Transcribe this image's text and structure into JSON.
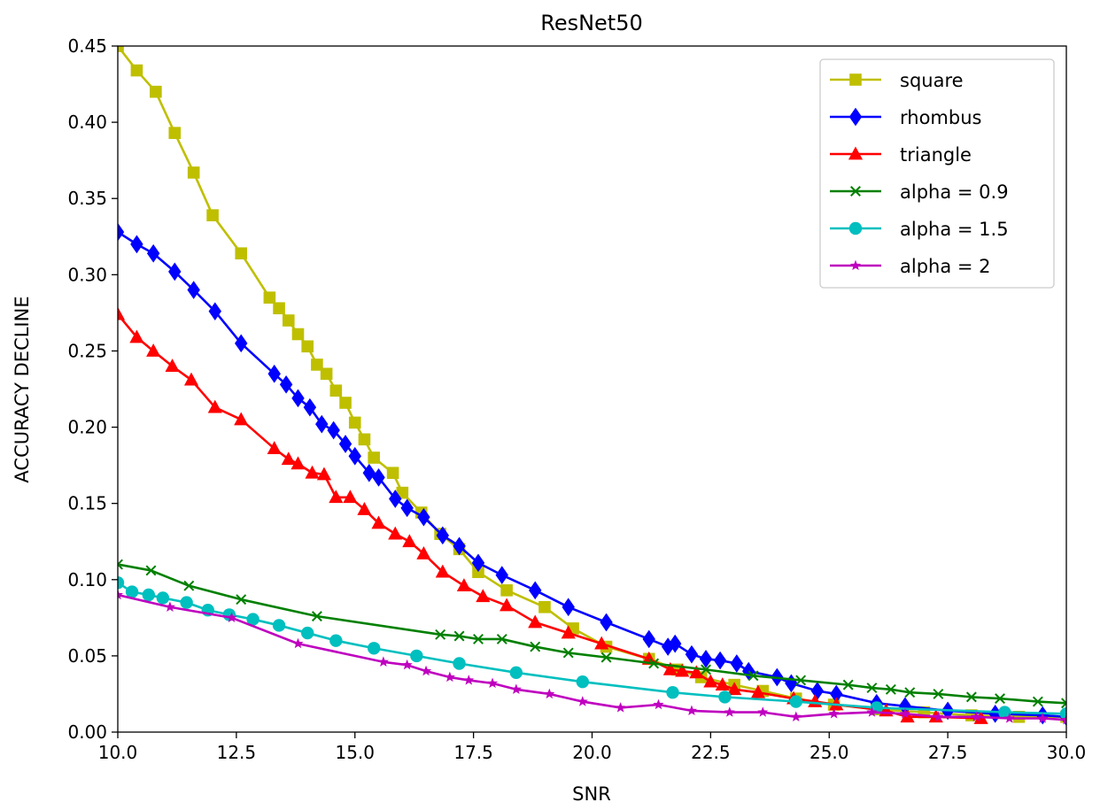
{
  "chart_data": {
    "type": "line",
    "title": "ResNet50",
    "xlabel": "SNR",
    "ylabel": "ACCURACY DECLINE",
    "xlim": [
      10.0,
      30.0
    ],
    "ylim": [
      0.0,
      0.45
    ],
    "xticks": [
      "10.0",
      "12.5",
      "15.0",
      "17.5",
      "20.0",
      "22.5",
      "25.0",
      "27.5",
      "30.0"
    ],
    "yticks": [
      "0.00",
      "0.05",
      "0.10",
      "0.15",
      "0.20",
      "0.25",
      "0.30",
      "0.35",
      "0.40",
      "0.45"
    ],
    "grid": false,
    "legend_position": "top-right",
    "series": [
      {
        "name": "square",
        "color": "#bfbf00",
        "marker": "square",
        "x": [
          10.0,
          10.4,
          10.8,
          11.2,
          11.6,
          12.0,
          12.6,
          13.2,
          13.4,
          13.6,
          13.8,
          14.0,
          14.2,
          14.4,
          14.6,
          14.8,
          15.0,
          15.2,
          15.4,
          15.8,
          16.0,
          16.4,
          16.8,
          17.2,
          17.6,
          18.2,
          19.0,
          19.6,
          20.3,
          21.2,
          21.8,
          22.3,
          23.0,
          23.6,
          24.3,
          25.1,
          26.0,
          27.0,
          28.0,
          29.0,
          30.0
        ],
        "y": [
          0.45,
          0.434,
          0.42,
          0.393,
          0.367,
          0.339,
          0.314,
          0.285,
          0.278,
          0.27,
          0.261,
          0.253,
          0.241,
          0.235,
          0.224,
          0.216,
          0.203,
          0.192,
          0.18,
          0.17,
          0.157,
          0.144,
          0.13,
          0.12,
          0.105,
          0.093,
          0.082,
          0.068,
          0.056,
          0.048,
          0.041,
          0.036,
          0.031,
          0.027,
          0.022,
          0.018,
          0.015,
          0.013,
          0.011,
          0.01,
          0.01
        ]
      },
      {
        "name": "rhombus",
        "color": "#0000ff",
        "marker": "diamond",
        "x": [
          10.0,
          10.4,
          10.75,
          11.2,
          11.6,
          12.05,
          12.6,
          13.3,
          13.55,
          13.8,
          14.05,
          14.3,
          14.55,
          14.8,
          15.0,
          15.3,
          15.5,
          15.85,
          16.1,
          16.45,
          16.85,
          17.2,
          17.6,
          18.1,
          18.8,
          19.5,
          20.3,
          21.2,
          21.6,
          21.75,
          22.1,
          22.4,
          22.7,
          23.05,
          23.3,
          23.9,
          24.2,
          24.75,
          25.15,
          26.0,
          26.6,
          27.5,
          28.5,
          29.5,
          30.0
        ],
        "y": [
          0.328,
          0.32,
          0.314,
          0.302,
          0.29,
          0.276,
          0.255,
          0.235,
          0.228,
          0.219,
          0.213,
          0.202,
          0.198,
          0.189,
          0.181,
          0.17,
          0.167,
          0.153,
          0.147,
          0.141,
          0.129,
          0.122,
          0.111,
          0.103,
          0.093,
          0.082,
          0.072,
          0.061,
          0.056,
          0.058,
          0.051,
          0.048,
          0.047,
          0.045,
          0.04,
          0.036,
          0.032,
          0.027,
          0.025,
          0.019,
          0.017,
          0.014,
          0.012,
          0.011,
          0.01
        ]
      },
      {
        "name": "triangle",
        "color": "#ff0000",
        "marker": "triangle",
        "x": [
          10.0,
          10.4,
          10.75,
          11.15,
          11.55,
          12.05,
          12.6,
          13.3,
          13.6,
          13.8,
          14.1,
          14.35,
          14.6,
          14.9,
          15.2,
          15.5,
          15.85,
          16.15,
          16.45,
          16.85,
          17.3,
          17.7,
          18.2,
          18.8,
          19.5,
          20.2,
          21.2,
          21.65,
          21.9,
          22.2,
          22.5,
          22.75,
          23.0,
          23.5,
          24.25,
          24.7,
          25.15,
          26.2,
          26.65,
          27.25,
          28.2
        ],
        "y": [
          0.274,
          0.259,
          0.25,
          0.24,
          0.231,
          0.213,
          0.205,
          0.186,
          0.179,
          0.176,
          0.17,
          0.169,
          0.154,
          0.154,
          0.146,
          0.137,
          0.13,
          0.125,
          0.117,
          0.105,
          0.096,
          0.089,
          0.083,
          0.072,
          0.065,
          0.058,
          0.048,
          0.041,
          0.04,
          0.039,
          0.033,
          0.031,
          0.028,
          0.026,
          0.022,
          0.02,
          0.018,
          0.014,
          0.01,
          0.01,
          0.009
        ]
      },
      {
        "name": "alpha = 0.9",
        "color": "#008000",
        "marker": "x",
        "x": [
          10.0,
          10.7,
          11.5,
          12.6,
          14.2,
          16.8,
          17.2,
          17.6,
          18.1,
          18.8,
          19.5,
          20.3,
          21.3,
          22.4,
          23.4,
          24.4,
          25.4,
          25.9,
          26.3,
          26.7,
          27.3,
          28.0,
          28.6,
          29.4,
          30.0
        ],
        "y": [
          0.11,
          0.106,
          0.096,
          0.087,
          0.076,
          0.064,
          0.063,
          0.061,
          0.061,
          0.056,
          0.052,
          0.049,
          0.045,
          0.041,
          0.037,
          0.034,
          0.031,
          0.029,
          0.028,
          0.026,
          0.025,
          0.023,
          0.022,
          0.02,
          0.019
        ]
      },
      {
        "name": "alpha = 1.5",
        "color": "#00bfbf",
        "marker": "circle",
        "x": [
          10.0,
          10.3,
          10.65,
          10.95,
          11.45,
          11.9,
          12.35,
          12.85,
          13.4,
          14.0,
          14.6,
          15.4,
          16.3,
          17.2,
          18.4,
          19.8,
          21.7,
          22.8,
          24.3,
          26.0,
          28.7,
          30.0
        ],
        "y": [
          0.098,
          0.092,
          0.09,
          0.088,
          0.085,
          0.08,
          0.077,
          0.074,
          0.07,
          0.065,
          0.06,
          0.055,
          0.05,
          0.045,
          0.039,
          0.033,
          0.026,
          0.023,
          0.02,
          0.016,
          0.013,
          0.012
        ]
      },
      {
        "name": "alpha = 2",
        "color": "#bf00bf",
        "marker": "star",
        "x": [
          10.0,
          11.1,
          12.4,
          13.8,
          15.6,
          16.1,
          16.5,
          17.0,
          17.4,
          17.9,
          18.4,
          19.1,
          19.8,
          20.6,
          21.4,
          22.1,
          22.9,
          23.6,
          24.3,
          25.1,
          25.9,
          26.6,
          27.3,
          28.1,
          28.8,
          29.5,
          30.0
        ],
        "y": [
          0.09,
          0.082,
          0.075,
          0.058,
          0.046,
          0.044,
          0.04,
          0.036,
          0.034,
          0.032,
          0.028,
          0.025,
          0.02,
          0.016,
          0.018,
          0.014,
          0.013,
          0.013,
          0.01,
          0.012,
          0.013,
          0.012,
          0.01,
          0.01,
          0.009,
          0.009,
          0.008
        ]
      }
    ]
  }
}
